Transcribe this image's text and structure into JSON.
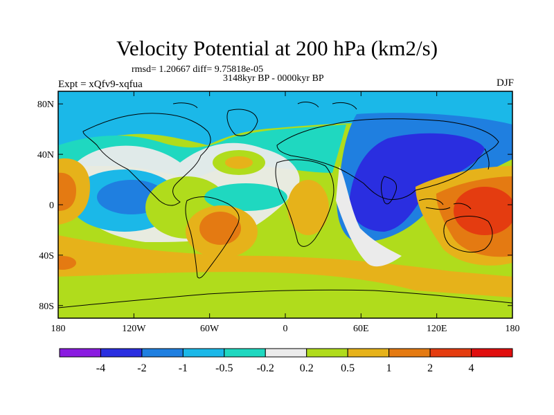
{
  "title": "Velocity Potential at 200 hPa (km2/s)",
  "subtitle_stats": "rmsd= 1.20667 diff= 9.75818e-05",
  "subtitle_period": "3148kyr BP - 0000kyr BP",
  "left_label": "Expt = xQfv9-xqfua",
  "right_label": "DJF",
  "chart_data": {
    "type": "heatmap",
    "projection": "cylindrical equidistant",
    "x_range": [
      -180,
      180
    ],
    "y_range": [
      -90,
      90
    ],
    "x_ticks": [
      {
        "value": -180,
        "label": "180"
      },
      {
        "value": -120,
        "label": "120W"
      },
      {
        "value": -60,
        "label": "60W"
      },
      {
        "value": 0,
        "label": "0"
      },
      {
        "value": 60,
        "label": "60E"
      },
      {
        "value": 120,
        "label": "120E"
      },
      {
        "value": 180,
        "label": "180"
      }
    ],
    "y_ticks": [
      {
        "value": 80,
        "label": "80N"
      },
      {
        "value": 40,
        "label": "40N"
      },
      {
        "value": 0,
        "label": "0"
      },
      {
        "value": -40,
        "label": "40S"
      },
      {
        "value": -80,
        "label": "80S"
      }
    ],
    "colorbar": {
      "levels": [
        "-4",
        "-2",
        "-1",
        "-0.5",
        "-0.2",
        "0.2",
        "0.5",
        "1",
        "2",
        "4"
      ],
      "colors": [
        "#8a1be0",
        "#2a2ee0",
        "#1f7fe0",
        "#1bb8e8",
        "#1fd8c0",
        "#ebebeb",
        "#b0dc1c",
        "#e6b21a",
        "#e47a12",
        "#e43c10",
        "#e00e0e"
      ]
    },
    "features": [
      {
        "label": "strong negative center",
        "lon": 80,
        "lat": 15,
        "level": "<-2"
      },
      {
        "label": "negative center",
        "lon": -140,
        "lat": 10,
        "level": "-1"
      },
      {
        "label": "positive center",
        "lon": 150,
        "lat": 0,
        "level": ">2"
      },
      {
        "label": "positive center",
        "lon": -40,
        "lat": -15,
        "level": "1 to 2"
      },
      {
        "label": "positive center",
        "lon": -170,
        "lat": 20,
        "level": "1 to 2"
      }
    ]
  }
}
